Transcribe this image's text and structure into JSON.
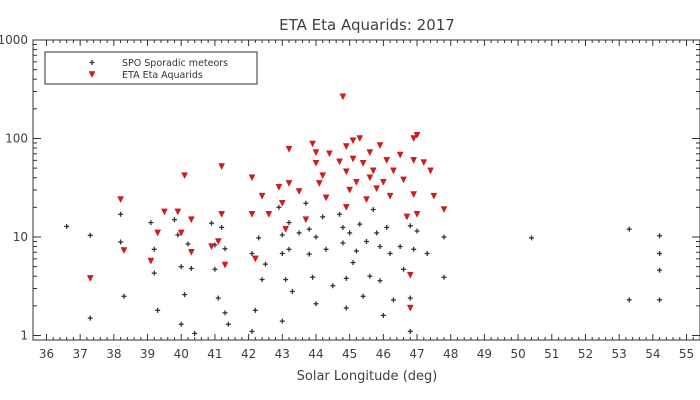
{
  "chart_data": {
    "type": "scatter",
    "title": "ETA Eta Aquarids: 2017",
    "xlabel": "Solar Longitude (deg)",
    "ylabel": "",
    "xlim": [
      35.6,
      55.4
    ],
    "ylim": [
      0.9,
      1000
    ],
    "yscale": "log",
    "xticks": [
      36,
      37,
      38,
      39,
      40,
      41,
      42,
      43,
      44,
      45,
      46,
      47,
      48,
      49,
      50,
      51,
      52,
      53,
      54,
      55
    ],
    "yticks": [
      {
        "value": 1,
        "label": "1"
      },
      {
        "value": 10,
        "label": "10"
      },
      {
        "value": 100,
        "label": "100"
      },
      {
        "value": 1000,
        "label": "1000"
      }
    ],
    "grid": false,
    "legend_position": "top-left",
    "series": [
      {
        "name": "SPO Sporadic meteors",
        "marker": "plus",
        "color": "#333333",
        "points": [
          [
            36.6,
            12.8
          ],
          [
            37.3,
            10.4
          ],
          [
            37.3,
            1.5
          ],
          [
            38.2,
            17
          ],
          [
            38.2,
            8.9
          ],
          [
            38.3,
            2.5
          ],
          [
            39.1,
            14
          ],
          [
            39.2,
            7.5
          ],
          [
            39.2,
            4.3
          ],
          [
            39.3,
            1.8
          ],
          [
            39.8,
            15
          ],
          [
            39.9,
            10.5
          ],
          [
            40.0,
            5
          ],
          [
            40.1,
            2.6
          ],
          [
            40.0,
            1.3
          ],
          [
            40.2,
            8.5
          ],
          [
            40.3,
            4.8
          ],
          [
            40.4,
            1.05
          ],
          [
            40.9,
            13.8
          ],
          [
            41.0,
            8.3
          ],
          [
            41.0,
            4.7
          ],
          [
            41.1,
            2.4
          ],
          [
            41.2,
            12.5
          ],
          [
            41.3,
            7.6
          ],
          [
            41.3,
            1.7
          ],
          [
            41.4,
            1.3
          ],
          [
            42.1,
            6.8
          ],
          [
            42.2,
            1.8
          ],
          [
            42.1,
            1.1
          ],
          [
            42.3,
            9.8
          ],
          [
            42.4,
            3.7
          ],
          [
            42.5,
            5.3
          ],
          [
            42.9,
            20
          ],
          [
            43.0,
            10.5
          ],
          [
            43.0,
            6.8
          ],
          [
            43.1,
            3.7
          ],
          [
            43.0,
            1.4
          ],
          [
            43.2,
            14
          ],
          [
            43.2,
            7.5
          ],
          [
            43.3,
            2.8
          ],
          [
            43.5,
            11
          ],
          [
            43.7,
            22
          ],
          [
            43.8,
            12
          ],
          [
            43.8,
            6.7
          ],
          [
            43.9,
            3.9
          ],
          [
            44.0,
            10
          ],
          [
            44.0,
            2.1
          ],
          [
            44.2,
            16
          ],
          [
            44.3,
            7.5
          ],
          [
            44.5,
            3.2
          ],
          [
            44.7,
            17
          ],
          [
            44.8,
            12.5
          ],
          [
            44.8,
            8.7
          ],
          [
            44.9,
            3.8
          ],
          [
            44.9,
            1.9
          ],
          [
            45.0,
            11
          ],
          [
            45.1,
            5.5
          ],
          [
            45.2,
            7.2
          ],
          [
            45.3,
            13.5
          ],
          [
            45.4,
            2.5
          ],
          [
            45.5,
            9
          ],
          [
            45.6,
            4
          ],
          [
            45.7,
            19
          ],
          [
            45.8,
            11
          ],
          [
            45.9,
            8
          ],
          [
            45.9,
            3.6
          ],
          [
            46.0,
            1.6
          ],
          [
            46.1,
            12.5
          ],
          [
            46.2,
            6.8
          ],
          [
            46.3,
            2.3
          ],
          [
            46.5,
            8
          ],
          [
            46.6,
            4.7
          ],
          [
            46.8,
            13
          ],
          [
            46.8,
            2.4
          ],
          [
            46.9,
            7.5
          ],
          [
            46.8,
            1.1
          ],
          [
            47.0,
            11.5
          ],
          [
            47.3,
            6.8
          ],
          [
            47.8,
            10
          ],
          [
            47.8,
            3.9
          ],
          [
            50.4,
            9.8
          ],
          [
            53.3,
            12
          ],
          [
            53.3,
            2.3
          ],
          [
            54.2,
            10.3
          ],
          [
            54.2,
            6.8
          ],
          [
            54.2,
            4.6
          ],
          [
            54.2,
            2.3
          ]
        ]
      },
      {
        "name": "ETA Eta Aquarids",
        "marker": "triangle-down",
        "color": "#d11c1c",
        "points": [
          [
            37.3,
            3.8
          ],
          [
            38.2,
            24
          ],
          [
            38.3,
            7.3
          ],
          [
            39.1,
            5.7
          ],
          [
            39.3,
            11
          ],
          [
            39.5,
            18
          ],
          [
            39.9,
            18
          ],
          [
            40.0,
            11
          ],
          [
            40.1,
            42
          ],
          [
            40.3,
            7
          ],
          [
            40.3,
            15
          ],
          [
            40.9,
            8
          ],
          [
            41.1,
            9
          ],
          [
            41.2,
            52
          ],
          [
            41.2,
            17
          ],
          [
            41.3,
            5.2
          ],
          [
            42.1,
            40
          ],
          [
            42.1,
            17
          ],
          [
            42.2,
            6
          ],
          [
            42.4,
            26
          ],
          [
            42.6,
            17
          ],
          [
            42.9,
            32
          ],
          [
            43.0,
            22
          ],
          [
            43.1,
            12
          ],
          [
            43.2,
            78
          ],
          [
            43.2,
            35
          ],
          [
            43.5,
            29
          ],
          [
            43.7,
            15
          ],
          [
            43.9,
            88
          ],
          [
            44.0,
            56
          ],
          [
            44.1,
            35
          ],
          [
            44.2,
            42
          ],
          [
            44.3,
            25
          ],
          [
            44.4,
            70
          ],
          [
            44.7,
            58
          ],
          [
            44.8,
            265
          ],
          [
            44.9,
            83
          ],
          [
            44.9,
            46
          ],
          [
            44.9,
            20
          ],
          [
            45.0,
            30
          ],
          [
            45.1,
            95
          ],
          [
            45.1,
            62
          ],
          [
            45.2,
            36
          ],
          [
            45.3,
            100
          ],
          [
            45.4,
            56
          ],
          [
            45.5,
            24
          ],
          [
            45.6,
            72
          ],
          [
            45.7,
            47
          ],
          [
            45.8,
            31
          ],
          [
            45.9,
            85
          ],
          [
            46.0,
            36
          ],
          [
            46.1,
            60
          ],
          [
            46.2,
            26
          ],
          [
            46.3,
            47
          ],
          [
            46.5,
            68
          ],
          [
            46.6,
            38
          ],
          [
            46.7,
            16
          ],
          [
            46.9,
            100
          ],
          [
            46.9,
            60
          ],
          [
            46.9,
            27
          ],
          [
            47.0,
            108
          ],
          [
            47.2,
            57
          ],
          [
            47.4,
            47
          ],
          [
            47.5,
            26
          ],
          [
            47.8,
            19
          ],
          [
            46.8,
            1.9
          ],
          [
            46.8,
            4.1
          ],
          [
            44.0,
            72
          ],
          [
            45.6,
            40
          ],
          [
            47.0,
            17
          ]
        ]
      }
    ]
  }
}
